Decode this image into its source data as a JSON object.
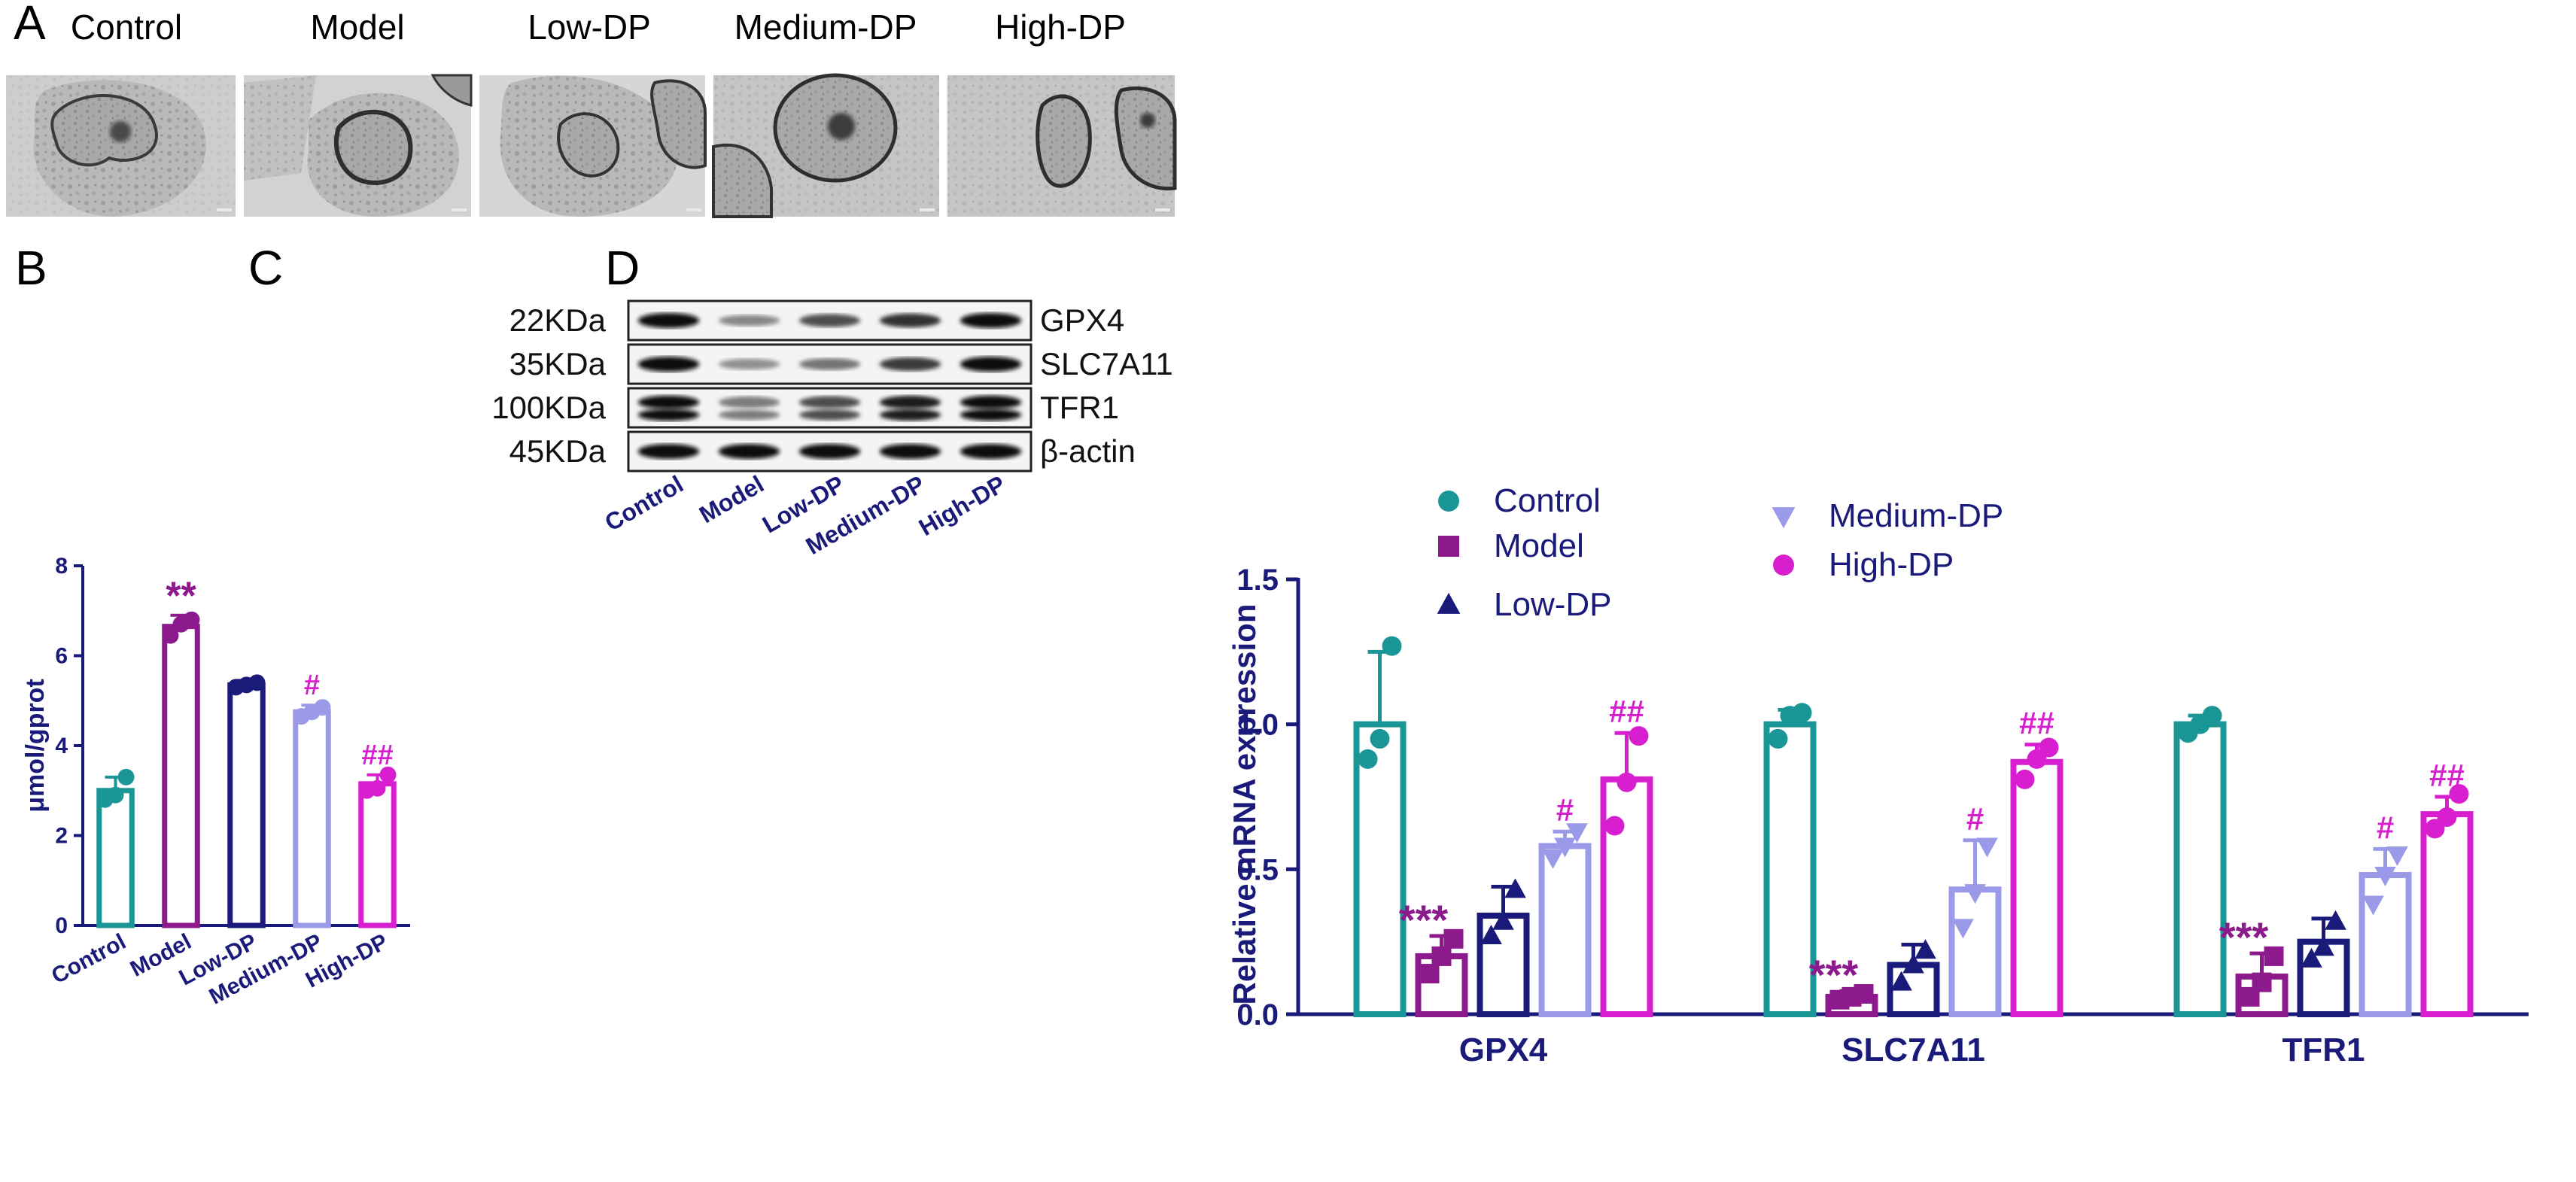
{
  "panels": {
    "a": "A",
    "b": "B",
    "c": "C",
    "d": "D"
  },
  "em_images": [
    {
      "title": "Control"
    },
    {
      "title": "Model"
    },
    {
      "title": "Low-DP"
    },
    {
      "title": "Medium-DP"
    },
    {
      "title": "High-DP"
    }
  ],
  "colors": {
    "Control": "#1a9696",
    "Model": "#8c1a8c",
    "Low-DP": "#1a1a7a",
    "Medium-DP": "#9a9ae8",
    "High-DP": "#d81fd0",
    "axis": "#1a1a7a",
    "sig_star": "#8c1a8c",
    "sig_hash": "#d81fd0"
  },
  "chart_data": [
    {
      "id": "B",
      "type": "bar",
      "ylabel": "μmol/gprot",
      "ylim": [
        0,
        8
      ],
      "yticks": [
        0,
        2,
        4,
        6,
        8
      ],
      "categories": [
        "Control",
        "Model",
        "Low-DP",
        "Medium-DP",
        "High-DP"
      ],
      "values": [
        3.0,
        6.65,
        5.35,
        4.75,
        3.15
      ],
      "errors": [
        0.3,
        0.25,
        0.1,
        0.15,
        0.2
      ],
      "points": [
        [
          2.8,
          2.9,
          3.3
        ],
        [
          6.45,
          6.7,
          6.8
        ],
        [
          5.3,
          5.35,
          5.4
        ],
        [
          4.65,
          4.75,
          4.85
        ],
        [
          3.0,
          3.05,
          3.35
        ]
      ],
      "significance": [
        "",
        "**",
        "",
        "#",
        "##"
      ]
    },
    {
      "id": "D",
      "type": "bar",
      "ylabel": "Relative mRNA expression",
      "ylim": [
        0,
        1.5
      ],
      "yticks": [
        "0.0",
        "0.5",
        "1.0",
        "1.5"
      ],
      "categories": [
        "GPX4",
        "SLC7A11",
        "TFR1"
      ],
      "series": [
        {
          "name": "Control",
          "values": [
            1.0,
            1.0,
            1.0
          ],
          "errors": [
            0.25,
            0.05,
            0.03
          ],
          "points": [
            [
              0.88,
              0.95,
              1.27
            ],
            [
              0.95,
              1.03,
              1.04
            ],
            [
              0.97,
              1.0,
              1.03
            ]
          ],
          "marker": "circle",
          "sig": [
            "",
            "",
            ""
          ]
        },
        {
          "name": "Model",
          "values": [
            0.2,
            0.06,
            0.13
          ],
          "errors": [
            0.07,
            0.02,
            0.08
          ],
          "points": [
            [
              0.14,
              0.2,
              0.26
            ],
            [
              0.05,
              0.06,
              0.07
            ],
            [
              0.06,
              0.11,
              0.2
            ]
          ],
          "marker": "square",
          "sig": [
            "***",
            "***",
            "***"
          ]
        },
        {
          "name": "Low-DP",
          "values": [
            0.34,
            0.17,
            0.25
          ],
          "errors": [
            0.1,
            0.07,
            0.08
          ],
          "points": [
            [
              0.27,
              0.32,
              0.43
            ],
            [
              0.11,
              0.17,
              0.22
            ],
            [
              0.19,
              0.23,
              0.32
            ]
          ],
          "marker": "triangle-up",
          "sig": [
            "",
            "",
            ""
          ]
        },
        {
          "name": "Medium-DP",
          "values": [
            0.58,
            0.43,
            0.48
          ],
          "errors": [
            0.05,
            0.17,
            0.09
          ],
          "points": [
            [
              0.54,
              0.58,
              0.63
            ],
            [
              0.3,
              0.42,
              0.58
            ],
            [
              0.38,
              0.48,
              0.55
            ]
          ],
          "marker": "triangle-down",
          "sig": [
            "#",
            "#",
            "#"
          ]
        },
        {
          "name": "High-DP",
          "values": [
            0.81,
            0.87,
            0.69
          ],
          "errors": [
            0.16,
            0.06,
            0.06
          ],
          "points": [
            [
              0.65,
              0.8,
              0.96
            ],
            [
              0.81,
              0.88,
              0.92
            ],
            [
              0.64,
              0.68,
              0.76
            ]
          ],
          "marker": "circle",
          "sig": [
            "##",
            "##",
            "##"
          ]
        }
      ]
    }
  ],
  "blot": {
    "lanes": [
      "Control",
      "Model",
      "Low-DP",
      "Medium-DP",
      "High-DP"
    ],
    "rows": [
      {
        "kda": "22KDa",
        "protein": "GPX4",
        "intensity": [
          1.0,
          0.35,
          0.65,
          0.8,
          1.0
        ],
        "double": false
      },
      {
        "kda": "35KDa",
        "protein": "SLC7A11",
        "intensity": [
          1.0,
          0.3,
          0.45,
          0.75,
          1.0
        ],
        "double": false
      },
      {
        "kda": "100KDa",
        "protein": "TFR1",
        "intensity": [
          1.0,
          0.4,
          0.65,
          0.9,
          1.0
        ],
        "double": true
      },
      {
        "kda": "45KDa",
        "protein": "β-actin",
        "intensity": [
          1.0,
          1.0,
          1.0,
          1.0,
          1.0
        ],
        "double": false
      }
    ]
  }
}
